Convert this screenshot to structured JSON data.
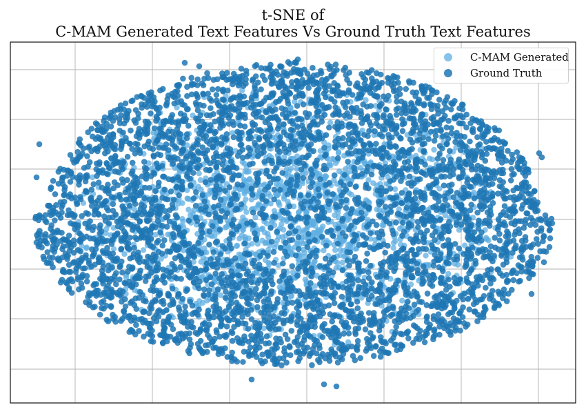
{
  "chart_data": {
    "type": "scatter",
    "title_lines": [
      "t-SNE of",
      "C-MAM Generated Text Features Vs Ground Truth Text Features"
    ],
    "xlabel": "",
    "ylabel": "",
    "xticks_labeled": false,
    "yticks_labeled": false,
    "grid": true,
    "legend_position": "top-right",
    "series": [
      {
        "name": "C-MAM Generated",
        "color": "#5dade2",
        "alpha": 0.75
      },
      {
        "name": "Ground Truth",
        "color": "#1f77b4",
        "alpha": 0.85
      }
    ],
    "point_cloud_shape": "dense oval cluster, ground truth points overlaying a lighter generated-feature core"
  }
}
